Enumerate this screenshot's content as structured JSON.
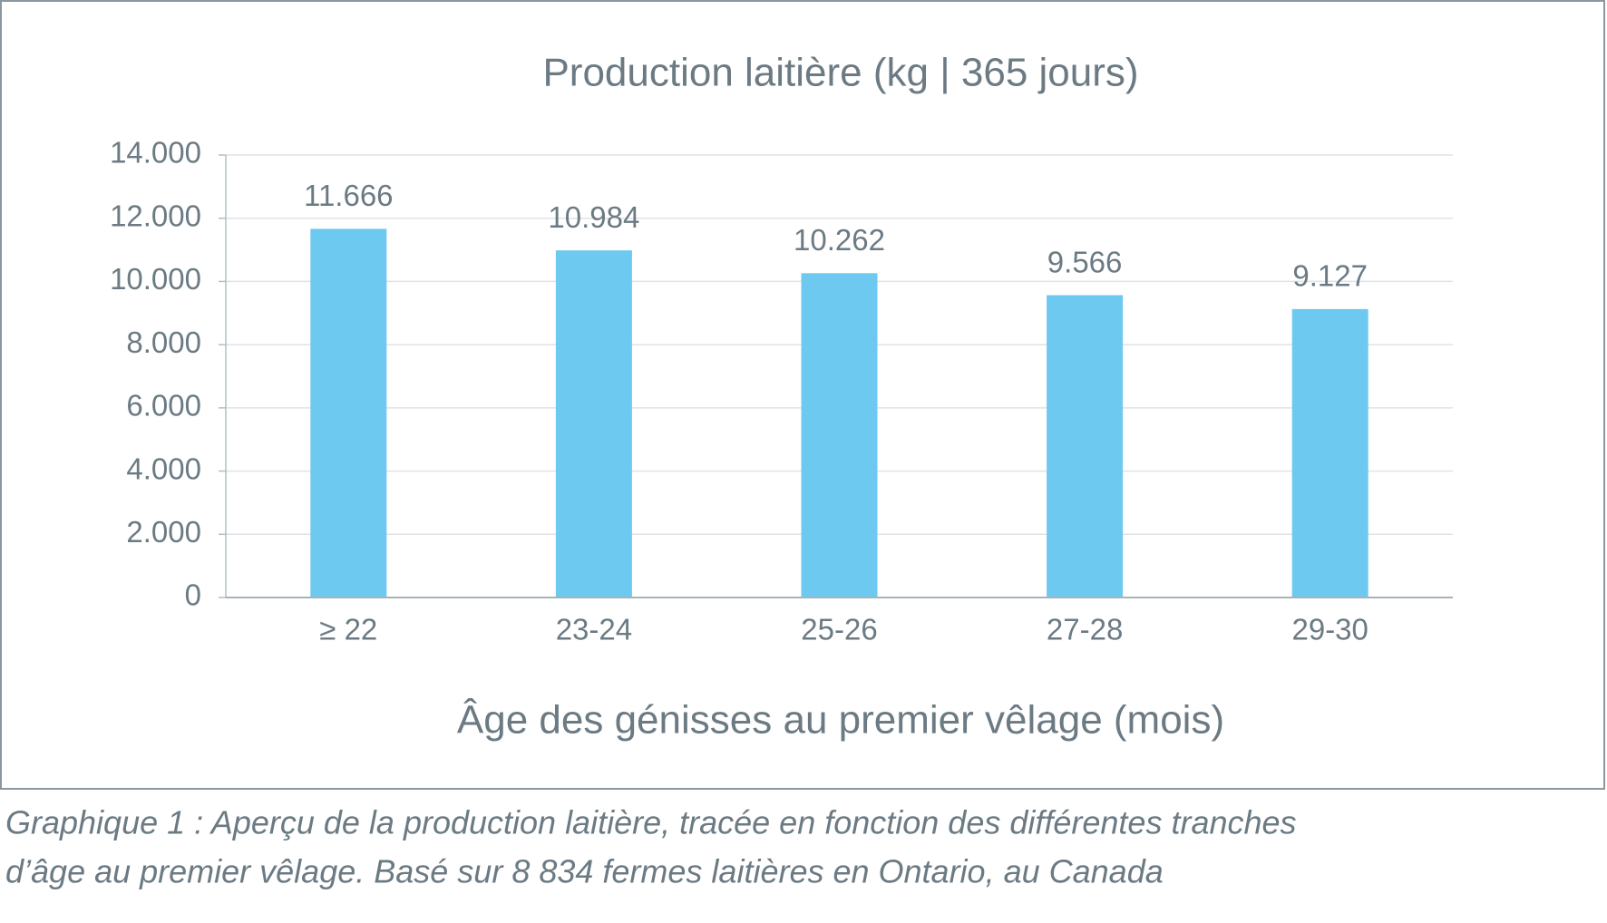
{
  "chart_data": {
    "type": "bar",
    "title": "Production laitière (kg | 365 jours)",
    "x_label": "Âge des génisses au premier vêlage (mois)",
    "categories": [
      "≥ 22",
      "23-24",
      "25-26",
      "27-28",
      "29-30"
    ],
    "values": [
      11666,
      10984,
      10262,
      9566,
      9127
    ],
    "value_labels": [
      "11.666",
      "10.984",
      "10.262",
      "9.566",
      "9.127"
    ],
    "color": "#6ec9f0",
    "ylim": [
      0,
      14000
    ],
    "yticks": [
      0,
      {
        "value": 2000,
        "label": "2.000"
      },
      {
        "value": 4000,
        "label": "4.000"
      },
      {
        "value": 6000,
        "label": "6.000"
      },
      {
        "value": 8000,
        "label": "8.000"
      },
      {
        "value": 10000,
        "label": "10.000"
      },
      {
        "value": 12000,
        "label": "12.000"
      },
      {
        "value": 14000,
        "label": "14.000"
      }
    ],
    "grid": true,
    "caption": [
      "Graphique 1 : Aperçu de la production laitière, tracée en fonction des différentes tranches",
      "d’âge au premier vêlage. Basé sur 8 834 fermes laitières en Ontario, au Canada"
    ]
  }
}
